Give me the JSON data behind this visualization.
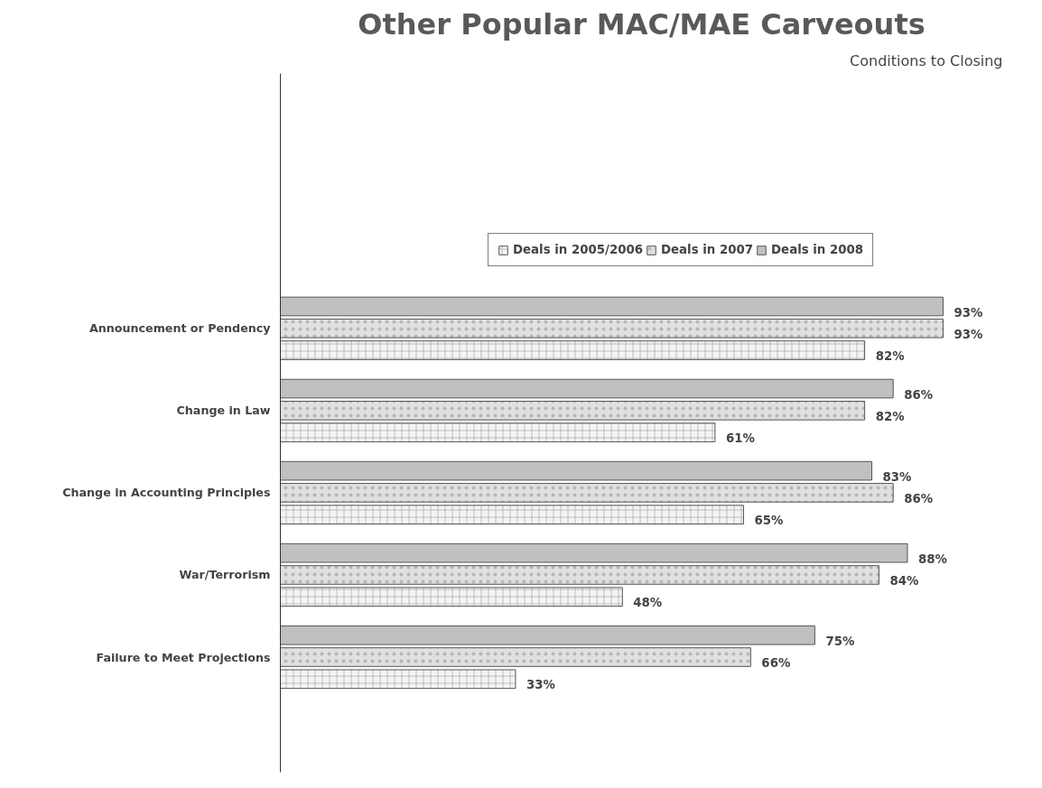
{
  "chart_data": {
    "type": "bar",
    "orientation": "horizontal",
    "title": "Other Popular MAC/MAE Carveouts",
    "annotations": [
      "Conditions to Closing"
    ],
    "categories": [
      "Announcement or Pendency",
      "Change in Law",
      "Change in Accounting Principles",
      "War/Terrorism",
      "Failure to Meet Projections"
    ],
    "series": [
      {
        "name": "Deals in 2005/2006",
        "color": "#f4f4f4",
        "values": [
          82,
          61,
          65,
          48,
          33
        ],
        "value_labels": [
          "82%",
          "61%",
          "65%",
          "48%",
          "33%"
        ]
      },
      {
        "name": "Deals in 2007",
        "color": "#e0e0e0",
        "values": [
          93,
          82,
          86,
          84,
          66
        ],
        "value_labels": [
          "93%",
          "82%",
          "86%",
          "84%",
          "66%"
        ]
      },
      {
        "name": "Deals in 2008",
        "color": "#c0c0c0",
        "values": [
          93,
          86,
          83,
          88,
          75
        ],
        "value_labels": [
          "93%",
          "86%",
          "83%",
          "88%",
          "75%"
        ]
      }
    ],
    "legend": "top",
    "grid": false
  }
}
